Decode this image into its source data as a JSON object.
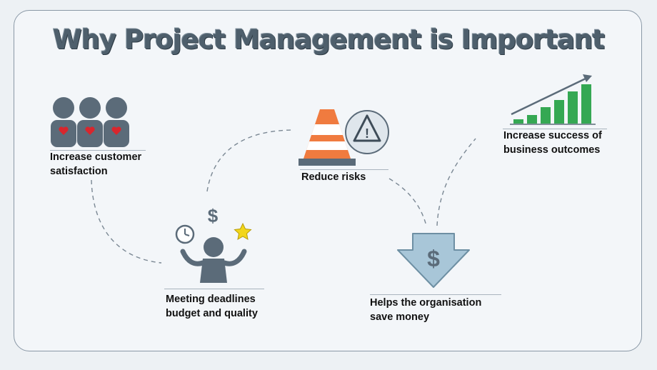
{
  "title": "Why Project Management is Important",
  "items": [
    {
      "id": "customer",
      "line1": "Increase customer",
      "line2": "satisfaction",
      "icon": "people-hearts-icon"
    },
    {
      "id": "deadlines",
      "line1": "Meeting deadlines",
      "line2": "budget and quality",
      "icon": "juggling-person-icon"
    },
    {
      "id": "risks",
      "line1": "Reduce risks",
      "line2": "",
      "icon": "traffic-cone-icon"
    },
    {
      "id": "money",
      "line1": "Helps the organisation",
      "line2": "save money",
      "icon": "dollar-down-arrow-icon"
    },
    {
      "id": "success",
      "line1": "Increase success of",
      "line2": "business outcomes",
      "icon": "growth-chart-icon"
    }
  ],
  "icon_symbols": {
    "dollar": "$",
    "warning": "!"
  },
  "colors": {
    "figure": "#5b6b79",
    "heart": "#d8262d",
    "cone": "#f07b3f",
    "arrow": "#a8c6d8",
    "bars": "#35a853",
    "star": "#f2d61a"
  }
}
